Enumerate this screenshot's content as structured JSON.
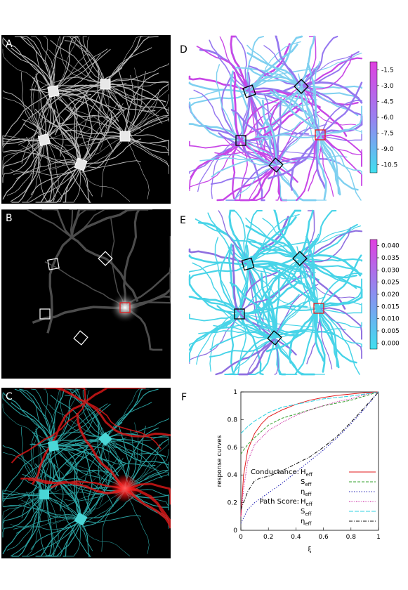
{
  "figure": {
    "panels": [
      {
        "id": "A",
        "label": "A"
      },
      {
        "id": "B",
        "label": "B"
      },
      {
        "id": "C",
        "label": "C"
      },
      {
        "id": "D",
        "label": "D"
      },
      {
        "id": "E",
        "label": "E"
      },
      {
        "id": "F",
        "label": "F"
      }
    ],
    "colorbar_D": {
      "ticks": [
        "-1.5",
        "-3.0",
        "-4.5",
        "-6.0",
        "-7.5",
        "-9.0",
        "-10.5"
      ],
      "top_color": "#e040e0",
      "bottom_color": "#40e0f0"
    },
    "colorbar_E": {
      "ticks": [
        "0.040",
        "0.035",
        "0.030",
        "0.025",
        "0.020",
        "0.015",
        "0.010",
        "0.005",
        "0.000"
      ],
      "top_color": "#e040e0",
      "bottom_color": "#40e0f0"
    },
    "legend": {
      "conductance_label": "Conductance:",
      "path_score_label": "Path Score:",
      "entries": [
        {
          "sym": "H",
          "sub": "eff",
          "color": "#e31a1c",
          "dash": ""
        },
        {
          "sym": "S",
          "sub": "eff",
          "color": "#33a02c",
          "dash": "4,2"
        },
        {
          "sym": "η",
          "sub": "eff",
          "color": "#1f1fb4",
          "dash": "1.5,2"
        },
        {
          "sym": "H",
          "sub": "eff",
          "color": "#c00090",
          "dash": "1,1.5"
        },
        {
          "sym": "S",
          "sub": "eff",
          "color": "#30d0e0",
          "dash": "6,2"
        },
        {
          "sym": "η",
          "sub": "eff",
          "color": "#111111",
          "dash": "5,2,1,2"
        }
      ]
    }
  },
  "chart_data": {
    "type": "line",
    "xlabel": "ξ",
    "ylabel": "response curves",
    "xlim": [
      0,
      1
    ],
    "ylim": [
      0,
      1
    ],
    "xticks": [
      "0",
      "0.2",
      "0.4",
      "0.6",
      "0.8",
      "1"
    ],
    "yticks": [
      "0",
      "0.2",
      "0.4",
      "0.6",
      "0.8",
      "1"
    ],
    "series": [
      {
        "name": "Conductance: Heff",
        "x": [
          0,
          0.02,
          0.05,
          0.1,
          0.15,
          0.2,
          0.3,
          0.4,
          0.5,
          0.6,
          0.7,
          0.8,
          0.9,
          1
        ],
        "y": [
          0.1,
          0.4,
          0.58,
          0.7,
          0.77,
          0.82,
          0.87,
          0.91,
          0.94,
          0.96,
          0.975,
          0.985,
          0.995,
          1
        ]
      },
      {
        "name": "Seff",
        "x": [
          0,
          0.02,
          0.05,
          0.1,
          0.2,
          0.3,
          0.4,
          0.5,
          0.6,
          0.7,
          0.8,
          0.9,
          1
        ],
        "y": [
          0.55,
          0.58,
          0.62,
          0.67,
          0.76,
          0.81,
          0.84,
          0.87,
          0.9,
          0.92,
          0.94,
          0.97,
          1
        ]
      },
      {
        "name": "ηeff",
        "x": [
          0,
          0.05,
          0.1,
          0.2,
          0.3,
          0.4,
          0.5,
          0.6,
          0.7,
          0.8,
          0.9,
          1
        ],
        "y": [
          0.05,
          0.15,
          0.2,
          0.27,
          0.34,
          0.42,
          0.5,
          0.58,
          0.67,
          0.77,
          0.88,
          1
        ]
      },
      {
        "name": "Path Score: Heff",
        "x": [
          0,
          0.02,
          0.05,
          0.1,
          0.2,
          0.3,
          0.4,
          0.5,
          0.6,
          0.7,
          0.8,
          0.9,
          1
        ],
        "y": [
          0.1,
          0.3,
          0.5,
          0.62,
          0.72,
          0.78,
          0.83,
          0.87,
          0.9,
          0.93,
          0.95,
          0.98,
          1
        ]
      },
      {
        "name": "Seff",
        "x": [
          0,
          0.05,
          0.1,
          0.2,
          0.3,
          0.4,
          0.5,
          0.6,
          0.7,
          0.8,
          0.9,
          1
        ],
        "y": [
          0.7,
          0.75,
          0.79,
          0.85,
          0.89,
          0.91,
          0.93,
          0.95,
          0.96,
          0.97,
          0.985,
          1
        ]
      },
      {
        "name": "ηeff",
        "x": [
          0,
          0.05,
          0.1,
          0.15,
          0.2,
          0.3,
          0.4,
          0.5,
          0.6,
          0.7,
          0.8,
          0.9,
          1
        ],
        "y": [
          0.15,
          0.28,
          0.36,
          0.38,
          0.39,
          0.43,
          0.48,
          0.53,
          0.6,
          0.68,
          0.78,
          0.89,
          1
        ]
      }
    ]
  }
}
